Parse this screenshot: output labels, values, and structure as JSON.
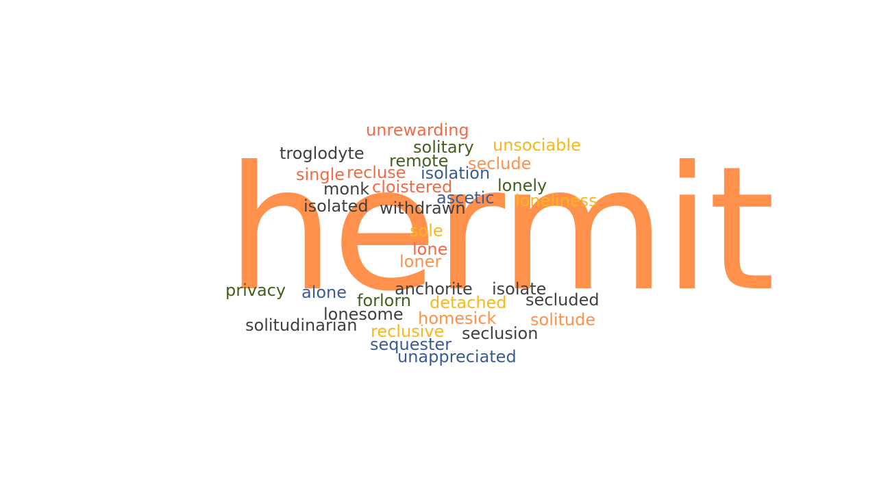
{
  "main_word": {
    "text": "hermit",
    "color": "#FF914D"
  },
  "words": [
    {
      "id": "unrewarding",
      "text": "unrewarding",
      "color": "#F46A45"
    },
    {
      "id": "solitary",
      "text": "solitary",
      "color": "#41601E"
    },
    {
      "id": "unsociable",
      "text": "unsociable",
      "color": "#F8B71D"
    },
    {
      "id": "troglodyte",
      "text": "troglodyte",
      "color": "#404040"
    },
    {
      "id": "remote",
      "text": "remote",
      "color": "#41601E"
    },
    {
      "id": "seclude",
      "text": "seclude",
      "color": "#FF914D"
    },
    {
      "id": "single",
      "text": "single",
      "color": "#F46A45"
    },
    {
      "id": "recluse",
      "text": "recluse",
      "color": "#F46A45"
    },
    {
      "id": "isolation",
      "text": "isolation",
      "color": "#3A5B96"
    },
    {
      "id": "monk",
      "text": "monk",
      "color": "#404040"
    },
    {
      "id": "cloistered",
      "text": "cloistered",
      "color": "#F46A45"
    },
    {
      "id": "lonely",
      "text": "lonely",
      "color": "#41601E"
    },
    {
      "id": "ascetic",
      "text": "ascetic",
      "color": "#3A5B96"
    },
    {
      "id": "loneliness",
      "text": "loneliness",
      "color": "#F8B71D"
    },
    {
      "id": "isolated",
      "text": "isolated",
      "color": "#404040"
    },
    {
      "id": "withdrawn",
      "text": "withdrawn",
      "color": "#404040"
    },
    {
      "id": "sole",
      "text": "sole",
      "color": "#F8B71D"
    },
    {
      "id": "lone",
      "text": "lone",
      "color": "#F46A45"
    },
    {
      "id": "loner",
      "text": "loner",
      "color": "#FF914D"
    },
    {
      "id": "privacy",
      "text": "privacy",
      "color": "#41601E"
    },
    {
      "id": "alone",
      "text": "alone",
      "color": "#3A5B96"
    },
    {
      "id": "anchorite",
      "text": "anchorite",
      "color": "#404040"
    },
    {
      "id": "isolate",
      "text": "isolate",
      "color": "#404040"
    },
    {
      "id": "forlorn",
      "text": "forlorn",
      "color": "#41601E"
    },
    {
      "id": "detached",
      "text": "detached",
      "color": "#F8B71D"
    },
    {
      "id": "secluded",
      "text": "secluded",
      "color": "#404040"
    },
    {
      "id": "lonesome",
      "text": "lonesome",
      "color": "#404040"
    },
    {
      "id": "homesick",
      "text": "homesick",
      "color": "#FF914D"
    },
    {
      "id": "solitude",
      "text": "solitude",
      "color": "#FF914D"
    },
    {
      "id": "solitudinarian",
      "text": "solitudinarian",
      "color": "#404040"
    },
    {
      "id": "reclusive",
      "text": "reclusive",
      "color": "#F8B71D"
    },
    {
      "id": "seclusion",
      "text": "seclusion",
      "color": "#404040"
    },
    {
      "id": "sequester",
      "text": "sequester",
      "color": "#3A5B96"
    },
    {
      "id": "unappreciated",
      "text": "unappreciated",
      "color": "#3A5B96"
    }
  ]
}
